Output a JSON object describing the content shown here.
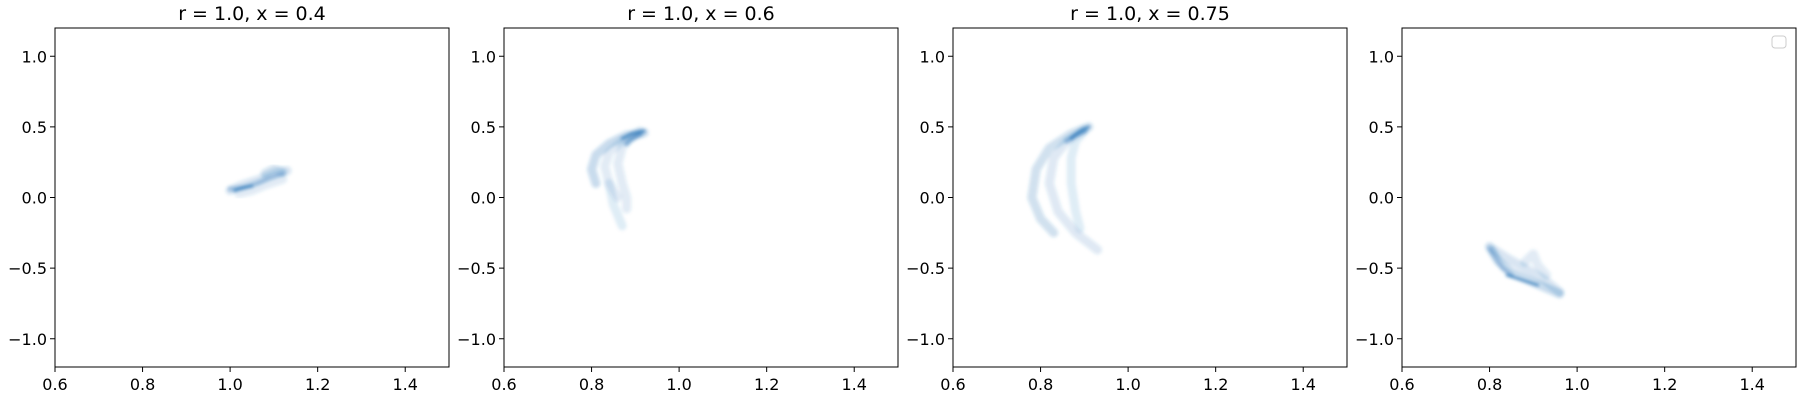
{
  "chart_data": [
    {
      "type": "scatter",
      "title": "r = 1.0, x = 0.4",
      "xlabel": "",
      "ylabel": "",
      "xlim": [
        0.6,
        1.5
      ],
      "ylim": [
        -1.2,
        1.2
      ],
      "xticks": [
        "0.6",
        "0.8",
        "1.0",
        "1.2",
        "1.4"
      ],
      "yticks": [
        "−1.0",
        "−0.5",
        "0.0",
        "0.5",
        "1.0"
      ],
      "cmap": "#2171b5",
      "density_strokes": [
        {
          "points": [
            [
              1.0,
              0.05
            ],
            [
              1.03,
              0.09
            ],
            [
              1.07,
              0.13
            ],
            [
              1.11,
              0.18
            ],
            [
              1.13,
              0.19
            ]
          ],
          "intensity": 0.25
        },
        {
          "points": [
            [
              1.0,
              0.06
            ],
            [
              1.03,
              0.07
            ],
            [
              1.06,
              0.1
            ],
            [
              1.09,
              0.14
            ],
            [
              1.12,
              0.17
            ]
          ],
          "intensity": 0.45
        },
        {
          "points": [
            [
              1.01,
              0.05
            ],
            [
              1.03,
              0.07
            ],
            [
              1.05,
              0.08
            ]
          ],
          "intensity": 0.9
        },
        {
          "points": [
            [
              1.02,
              0.03
            ],
            [
              1.05,
              0.05
            ],
            [
              1.08,
              0.09
            ],
            [
              1.12,
              0.13
            ]
          ],
          "intensity": 0.2
        },
        {
          "points": [
            [
              1.08,
              0.17
            ],
            [
              1.1,
              0.2
            ],
            [
              1.12,
              0.18
            ]
          ],
          "intensity": 0.3
        }
      ]
    },
    {
      "type": "scatter",
      "title": "r = 1.0, x = 0.6",
      "xlabel": "",
      "ylabel": "",
      "xlim": [
        0.6,
        1.5
      ],
      "ylim": [
        -1.2,
        1.2
      ],
      "xticks": [
        "0.6",
        "0.8",
        "1.0",
        "1.2",
        "1.4"
      ],
      "yticks": [
        "−1.0",
        "−0.5",
        "0.0",
        "0.5",
        "1.0"
      ],
      "cmap": "#2171b5",
      "density_strokes": [
        {
          "points": [
            [
              0.92,
              0.46
            ],
            [
              0.88,
              0.44
            ],
            [
              0.84,
              0.38
            ],
            [
              0.81,
              0.3
            ],
            [
              0.8,
              0.2
            ],
            [
              0.81,
              0.1
            ]
          ],
          "intensity": 0.35
        },
        {
          "points": [
            [
              0.91,
              0.45
            ],
            [
              0.87,
              0.4
            ],
            [
              0.84,
              0.32
            ],
            [
              0.83,
              0.22
            ],
            [
              0.84,
              0.1
            ],
            [
              0.86,
              0.0
            ]
          ],
          "intensity": 0.2
        },
        {
          "points": [
            [
              0.91,
              0.47
            ],
            [
              0.89,
              0.43
            ],
            [
              0.87,
              0.36
            ],
            [
              0.86,
              0.24
            ],
            [
              0.87,
              0.1
            ],
            [
              0.88,
              0.0
            ],
            [
              0.88,
              -0.08
            ]
          ],
          "intensity": 0.2
        },
        {
          "points": [
            [
              0.84,
              0.1
            ],
            [
              0.85,
              -0.05
            ],
            [
              0.87,
              -0.2
            ]
          ],
          "intensity": 0.18
        },
        {
          "points": [
            [
              0.92,
              0.47
            ],
            [
              0.89,
              0.45
            ],
            [
              0.87,
              0.42
            ]
          ],
          "intensity": 0.9
        },
        {
          "points": [
            [
              0.91,
              0.45
            ],
            [
              0.89,
              0.41
            ],
            [
              0.88,
              0.38
            ]
          ],
          "intensity": 0.6
        }
      ]
    },
    {
      "type": "scatter",
      "title": "r = 1.0, x = 0.75",
      "xlabel": "",
      "ylabel": "",
      "xlim": [
        0.6,
        1.5
      ],
      "ylim": [
        -1.2,
        1.2
      ],
      "xticks": [
        "0.6",
        "0.8",
        "1.0",
        "1.2",
        "1.4"
      ],
      "yticks": [
        "−1.0",
        "−0.5",
        "0.0",
        "0.5",
        "1.0"
      ],
      "cmap": "#2171b5",
      "density_strokes": [
        {
          "points": [
            [
              0.91,
              0.5
            ],
            [
              0.87,
              0.45
            ],
            [
              0.82,
              0.35
            ],
            [
              0.79,
              0.2
            ],
            [
              0.78,
              0.0
            ],
            [
              0.8,
              -0.15
            ],
            [
              0.83,
              -0.25
            ]
          ],
          "intensity": 0.3
        },
        {
          "points": [
            [
              0.9,
              0.48
            ],
            [
              0.86,
              0.4
            ],
            [
              0.83,
              0.28
            ],
            [
              0.82,
              0.1
            ],
            [
              0.84,
              -0.1
            ],
            [
              0.88,
              -0.25
            ],
            [
              0.93,
              -0.37
            ]
          ],
          "intensity": 0.22
        },
        {
          "points": [
            [
              0.9,
              0.47
            ],
            [
              0.88,
              0.4
            ],
            [
              0.87,
              0.28
            ],
            [
              0.87,
              0.1
            ],
            [
              0.88,
              -0.1
            ],
            [
              0.89,
              -0.22
            ]
          ],
          "intensity": 0.18
        },
        {
          "points": [
            [
              0.91,
              0.5
            ],
            [
              0.89,
              0.47
            ],
            [
              0.87,
              0.42
            ]
          ],
          "intensity": 0.9
        },
        {
          "points": [
            [
              0.9,
              0.47
            ],
            [
              0.88,
              0.44
            ],
            [
              0.86,
              0.4
            ]
          ],
          "intensity": 0.55
        }
      ]
    },
    {
      "type": "scatter",
      "title": "",
      "xlabel": "",
      "ylabel": "",
      "xlim": [
        0.6,
        1.5
      ],
      "ylim": [
        -1.2,
        1.2
      ],
      "xticks": [
        "0.6",
        "0.8",
        "1.0",
        "1.2",
        "1.4"
      ],
      "yticks": [
        "−1.0",
        "−0.5",
        "0.0",
        "0.5",
        "1.0"
      ],
      "legend": "top-right",
      "cmap": "#2171b5",
      "density_strokes": [
        {
          "points": [
            [
              0.8,
              -0.35
            ],
            [
              0.82,
              -0.45
            ],
            [
              0.85,
              -0.53
            ],
            [
              0.9,
              -0.6
            ],
            [
              0.96,
              -0.68
            ]
          ],
          "intensity": 0.35
        },
        {
          "points": [
            [
              0.81,
              -0.37
            ],
            [
              0.84,
              -0.43
            ],
            [
              0.88,
              -0.5
            ],
            [
              0.92,
              -0.57
            ],
            [
              0.96,
              -0.67
            ]
          ],
          "intensity": 0.25
        },
        {
          "points": [
            [
              0.84,
              -0.55
            ],
            [
              0.87,
              -0.58
            ],
            [
              0.91,
              -0.62
            ]
          ],
          "intensity": 0.9
        },
        {
          "points": [
            [
              0.88,
              -0.46
            ],
            [
              0.9,
              -0.4
            ],
            [
              0.91,
              -0.48
            ],
            [
              0.93,
              -0.55
            ]
          ],
          "intensity": 0.2
        },
        {
          "points": [
            [
              0.8,
              -0.36
            ],
            [
              0.83,
              -0.5
            ],
            [
              0.85,
              -0.55
            ]
          ],
          "intensity": 0.45
        }
      ]
    }
  ]
}
